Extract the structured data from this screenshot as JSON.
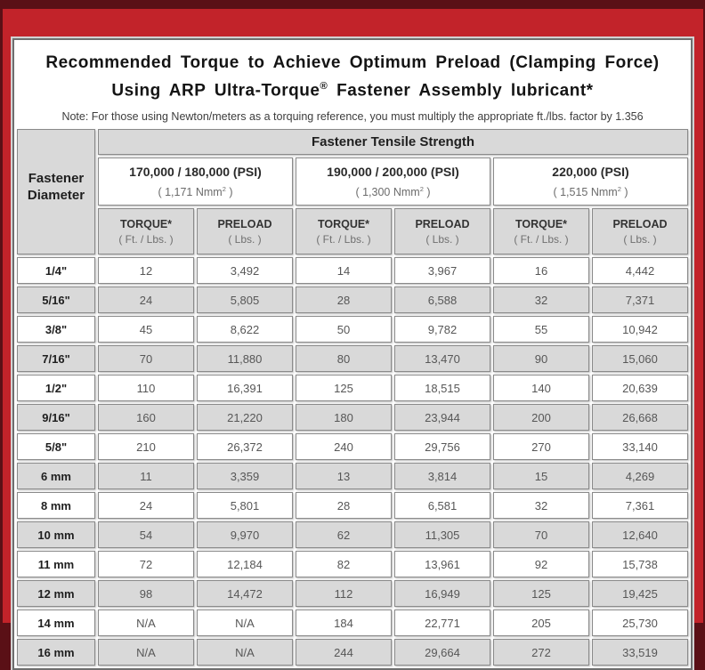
{
  "title": {
    "line1": "Recommended Torque to Achieve Optimum Preload (Clamping Force)",
    "line2_pre": "Using ARP Ultra-Torque",
    "line2_sup": "®",
    "line2_post": " Fastener Assembly lubricant*",
    "note": "Note: For those using Newton/meters as a torquing reference, you must multiply the appropriate ft./lbs. factor by 1.356"
  },
  "table": {
    "corner_line1": "Fastener",
    "corner_line2": "Diameter",
    "tensile_header": "Fastener Tensile Strength",
    "groups": [
      {
        "psi": "170,000 / 180,000 (PSI)",
        "nmm_prefix": "( 1,171 Nmm",
        "nmm_sup": "2",
        "nmm_suffix": " )"
      },
      {
        "psi": "190,000 / 200,000 (PSI)",
        "nmm_prefix": "( 1,300 Nmm",
        "nmm_sup": "2",
        "nmm_suffix": " )"
      },
      {
        "psi": "220,000 (PSI)",
        "nmm_prefix": "( 1,515 Nmm",
        "nmm_sup": "2",
        "nmm_suffix": " )"
      }
    ],
    "col_headers": {
      "torque_label": "TORQUE*",
      "torque_sub": "( Ft. / Lbs. )",
      "preload_label": "PRELOAD",
      "preload_sub": "( Lbs. )"
    },
    "rows": [
      {
        "diameter": "1/4\"",
        "values": [
          "12",
          "3,492",
          "14",
          "3,967",
          "16",
          "4,442"
        ]
      },
      {
        "diameter": "5/16\"",
        "values": [
          "24",
          "5,805",
          "28",
          "6,588",
          "32",
          "7,371"
        ]
      },
      {
        "diameter": "3/8\"",
        "values": [
          "45",
          "8,622",
          "50",
          "9,782",
          "55",
          "10,942"
        ]
      },
      {
        "diameter": "7/16\"",
        "values": [
          "70",
          "11,880",
          "80",
          "13,470",
          "90",
          "15,060"
        ]
      },
      {
        "diameter": "1/2\"",
        "values": [
          "110",
          "16,391",
          "125",
          "18,515",
          "140",
          "20,639"
        ]
      },
      {
        "diameter": "9/16\"",
        "values": [
          "160",
          "21,220",
          "180",
          "23,944",
          "200",
          "26,668"
        ]
      },
      {
        "diameter": "5/8\"",
        "values": [
          "210",
          "26,372",
          "240",
          "29,756",
          "270",
          "33,140"
        ]
      },
      {
        "diameter": "6 mm",
        "values": [
          "11",
          "3,359",
          "13",
          "3,814",
          "15",
          "4,269"
        ]
      },
      {
        "diameter": "8 mm",
        "values": [
          "24",
          "5,801",
          "28",
          "6,581",
          "32",
          "7,361"
        ]
      },
      {
        "diameter": "10 mm",
        "values": [
          "54",
          "9,970",
          "62",
          "11,305",
          "70",
          "12,640"
        ]
      },
      {
        "diameter": "11 mm",
        "values": [
          "72",
          "12,184",
          "82",
          "13,961",
          "92",
          "15,738"
        ]
      },
      {
        "diameter": "12 mm",
        "values": [
          "98",
          "14,472",
          "112",
          "16,949",
          "125",
          "19,425"
        ]
      },
      {
        "diameter": "14 mm",
        "values": [
          "N/A",
          "N/A",
          "184",
          "22,771",
          "205",
          "25,730"
        ]
      },
      {
        "diameter": "16 mm",
        "values": [
          "N/A",
          "N/A",
          "244",
          "29,664",
          "272",
          "33,519"
        ]
      }
    ]
  },
  "colors": {
    "outer_maroon": "#5a1016",
    "frame_red": "#c2232a",
    "panel_border": "#6f6f6f",
    "cell_gray": "#d9d9d9",
    "cell_border": "#8a8a8a",
    "data_text": "#575757"
  }
}
